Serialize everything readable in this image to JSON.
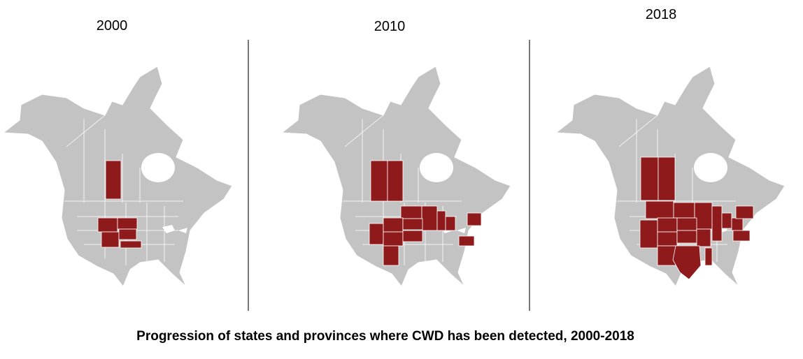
{
  "panels": [
    {
      "year": "2000"
    },
    {
      "year": "2010"
    },
    {
      "year": "2018"
    }
  ],
  "caption": "Progression of states and provinces where CWD has been detected, 2000-2018"
}
